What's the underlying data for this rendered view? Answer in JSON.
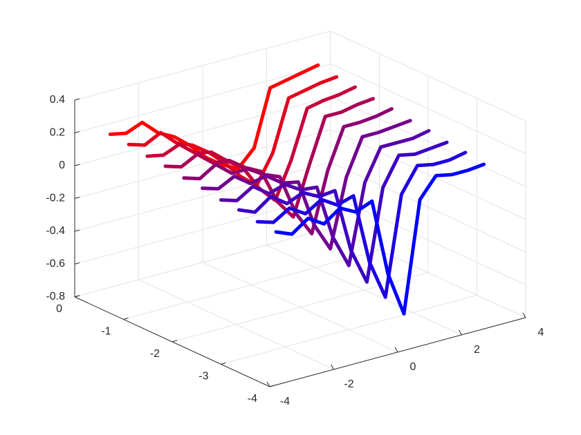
{
  "chart_data": {
    "type": "line3d",
    "x": [
      -3.5,
      -3,
      -2.5,
      -2,
      -1.5,
      -1,
      -0.5,
      0,
      0.5,
      1,
      1.5,
      2,
      2.5,
      3
    ],
    "series": [
      {
        "color": "#ff0000",
        "y": -0.4,
        "values": [
          0.22,
          0.2,
          0.24,
          0.15,
          0.1,
          0.02,
          -0.08,
          -0.15,
          -0.2,
          -0.1,
          0.24,
          0.26,
          0.28,
          0.3
        ]
      },
      {
        "color": "#e2001c",
        "y": -0.78,
        "values": [
          0.21,
          0.18,
          0.23,
          0.14,
          0.1,
          0.03,
          -0.06,
          -0.17,
          -0.25,
          -0.08,
          0.23,
          0.25,
          0.27,
          0.28
        ]
      },
      {
        "color": "#c60039",
        "y": -1.16,
        "values": [
          0.19,
          0.17,
          0.21,
          0.13,
          0.11,
          0.03,
          -0.04,
          -0.19,
          -0.29,
          -0.07,
          0.22,
          0.24,
          0.25,
          0.27
        ]
      },
      {
        "color": "#aa0055",
        "y": -1.53,
        "values": [
          0.18,
          0.15,
          0.2,
          0.12,
          0.11,
          0.04,
          -0.01,
          -0.22,
          -0.34,
          -0.05,
          0.22,
          0.22,
          0.24,
          0.25
        ]
      },
      {
        "color": "#8d0071",
        "y": -1.91,
        "values": [
          0.16,
          0.13,
          0.19,
          0.11,
          0.11,
          0.05,
          0.01,
          -0.24,
          -0.39,
          -0.03,
          0.21,
          0.21,
          0.22,
          0.24
        ]
      },
      {
        "color": "#71008e",
        "y": -2.29,
        "values": [
          0.15,
          0.12,
          0.17,
          0.1,
          0.12,
          0.05,
          0.03,
          -0.26,
          -0.43,
          -0.02,
          0.2,
          0.2,
          0.21,
          0.22
        ]
      },
      {
        "color": "#5500aa",
        "y": -2.67,
        "values": [
          0.13,
          0.1,
          0.16,
          0.09,
          0.12,
          0.06,
          0.05,
          -0.28,
          -0.48,
          0,
          0.19,
          0.19,
          0.19,
          0.21
        ]
      },
      {
        "color": "#3900c6",
        "y": -3.04,
        "values": [
          0.12,
          0.08,
          0.15,
          0.08,
          0.12,
          0.07,
          0.08,
          -0.31,
          -0.53,
          0.02,
          0.19,
          0.17,
          0.18,
          0.19
        ]
      },
      {
        "color": "#1c00e2",
        "y": -3.42,
        "values": [
          0.1,
          0.07,
          0.13,
          0.07,
          0.13,
          0.07,
          0.1,
          -0.33,
          -0.57,
          0.03,
          0.18,
          0.16,
          0.16,
          0.18
        ]
      },
      {
        "color": "#0000ff",
        "y": -3.8,
        "values": [
          0.09,
          0.05,
          0.12,
          0.06,
          0.13,
          0.08,
          0.12,
          -0.35,
          -0.62,
          0.05,
          0.17,
          0.15,
          0.15,
          0.16
        ]
      }
    ],
    "xlim": [
      -4,
      4
    ],
    "xticks": [
      -4,
      -2,
      0,
      2,
      4
    ],
    "ylim": [
      -4,
      0
    ],
    "yticks": [
      -4,
      -3,
      -2,
      -1,
      0
    ],
    "zlim": [
      -0.8,
      0.4
    ],
    "zticks": [
      -0.8,
      -0.6,
      -0.4,
      -0.2,
      0,
      0.2,
      0.4
    ],
    "grid": true
  }
}
